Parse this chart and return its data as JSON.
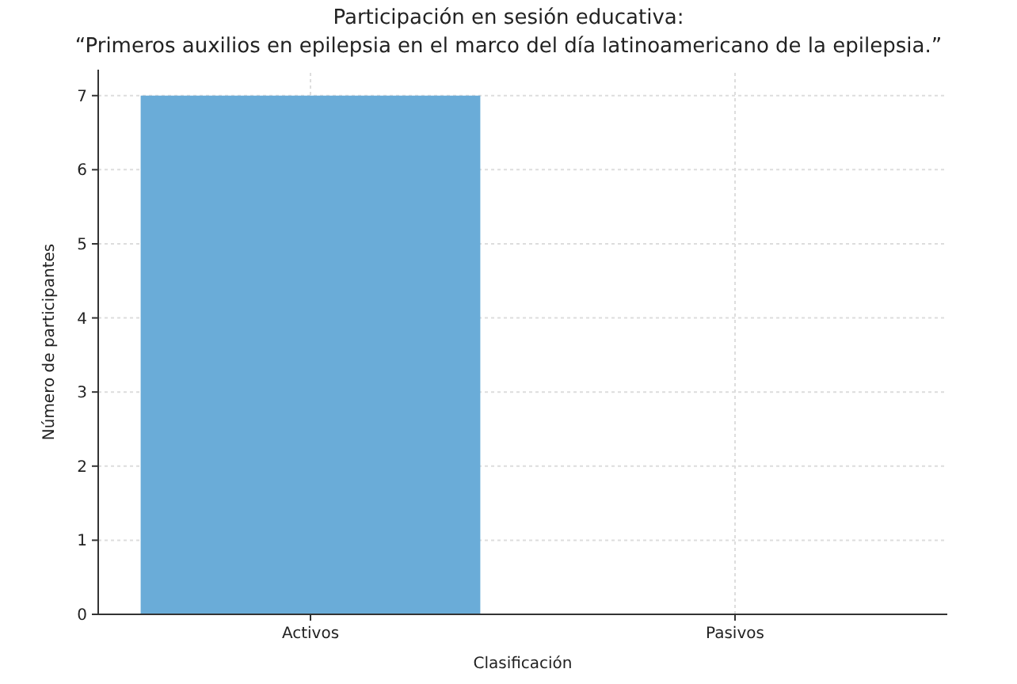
{
  "chart_data": {
    "type": "bar",
    "title": "Participación en sesión educativa:",
    "subtitle": "“Primeros auxilios en epilepsia en el marco del día latinoamericano de la epilepsia.”",
    "xlabel": "Clasificación",
    "ylabel": "Número de participantes",
    "categories": [
      "Activos",
      "Pasivos"
    ],
    "values": [
      7,
      0
    ],
    "color": "#6aacd8",
    "ylim": [
      0,
      7.35
    ],
    "yticks": [
      0,
      1,
      2,
      3,
      4,
      5,
      6,
      7
    ],
    "grid": true
  }
}
